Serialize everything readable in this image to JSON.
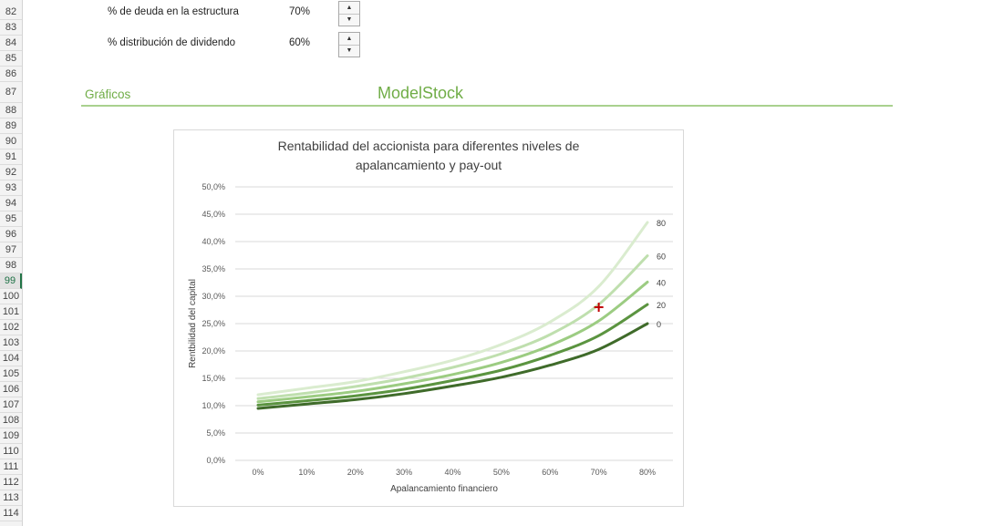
{
  "rows": [
    {
      "n": "82",
      "label": "% de deuda en la estructura",
      "value": "70%"
    },
    {
      "n": "83"
    },
    {
      "n": "84",
      "label": "% distribución de dividendo",
      "value": "60%"
    },
    {
      "n": "85"
    },
    {
      "n": "86"
    },
    {
      "n": "87"
    },
    {
      "n": "88"
    },
    {
      "n": "89"
    },
    {
      "n": "90"
    },
    {
      "n": "91"
    },
    {
      "n": "92"
    },
    {
      "n": "93"
    },
    {
      "n": "94"
    },
    {
      "n": "95"
    },
    {
      "n": "96"
    },
    {
      "n": "97"
    },
    {
      "n": "98"
    },
    {
      "n": "99",
      "selected": true
    },
    {
      "n": "100"
    },
    {
      "n": "101"
    },
    {
      "n": "102"
    },
    {
      "n": "103"
    },
    {
      "n": "104"
    },
    {
      "n": "105"
    },
    {
      "n": "106"
    },
    {
      "n": "107"
    },
    {
      "n": "108"
    },
    {
      "n": "109"
    },
    {
      "n": "110"
    },
    {
      "n": "111"
    },
    {
      "n": "112"
    },
    {
      "n": "113"
    },
    {
      "n": "114"
    }
  ],
  "params": {
    "debt_label": "% de deuda en la estructura",
    "debt_value": "70%",
    "dividend_label": "% distribución de dividendo",
    "dividend_value": "60%"
  },
  "spinner": {
    "up": "▲",
    "down": "▼"
  },
  "section": {
    "title": "Gráficos",
    "brand": "ModelStock"
  },
  "colors": {
    "accent": "#70ad47",
    "rule": "#a9d18e",
    "marker": "#c00000"
  },
  "chart_data": {
    "type": "line",
    "title_line1": "Rentabilidad del accionista para diferentes niveles de",
    "title_line2": "apalancamiento y pay-out",
    "xlabel": "Apalancamiento financiero",
    "ylabel": "Rentbilidad del capital",
    "x": [
      0,
      10,
      20,
      30,
      40,
      50,
      60,
      70,
      80
    ],
    "x_tick_labels": [
      "0%",
      "10%",
      "20%",
      "30%",
      "40%",
      "50%",
      "60%",
      "70%",
      "80%"
    ],
    "ylim": [
      0,
      50
    ],
    "y_ticks": [
      0,
      5,
      10,
      15,
      20,
      25,
      30,
      35,
      40,
      45,
      50
    ],
    "y_tick_labels": [
      "0,0%",
      "5,0%",
      "10,0%",
      "15,0%",
      "20,0%",
      "25,0%",
      "30,0%",
      "35,0%",
      "40,0%",
      "45,0%",
      "50,0%"
    ],
    "grid": true,
    "series": [
      {
        "name": "0",
        "color": "#3f6b2a",
        "values": [
          9.5,
          10.3,
          11.1,
          12.2,
          13.6,
          15.2,
          17.4,
          20.3,
          25.0
        ]
      },
      {
        "name": "20",
        "color": "#5b9440",
        "values": [
          10.1,
          10.9,
          11.8,
          13.0,
          14.6,
          16.5,
          19.2,
          22.8,
          28.5
        ]
      },
      {
        "name": "40",
        "color": "#9ccc82",
        "values": [
          10.7,
          11.6,
          12.6,
          14.0,
          15.7,
          17.9,
          21.0,
          25.5,
          32.6
        ]
      },
      {
        "name": "60",
        "color": "#bfdfae",
        "values": [
          11.3,
          12.3,
          13.5,
          15.0,
          17.0,
          19.5,
          23.0,
          28.5,
          37.4
        ]
      },
      {
        "name": "80",
        "color": "#daeccf",
        "values": [
          12.0,
          13.2,
          14.4,
          16.2,
          18.3,
          21.2,
          25.3,
          31.8,
          43.5
        ]
      }
    ],
    "marker": {
      "symbol": "+",
      "x": 70,
      "y": 28
    }
  }
}
